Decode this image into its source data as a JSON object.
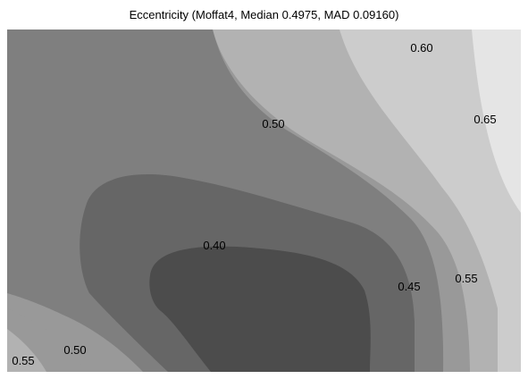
{
  "chart_data": {
    "type": "contour",
    "title": "Eccentricity (Moffat4, Median 0.4975, MAD 0.09160)",
    "xlabel": "",
    "ylabel": "",
    "grid": false,
    "colorbar": false,
    "levels": [
      0.4,
      0.45,
      0.5,
      0.55,
      0.6,
      0.65
    ],
    "bands": [
      {
        "range": [
          0.35,
          0.4
        ],
        "color": "#4c4c4c"
      },
      {
        "range": [
          0.4,
          0.45
        ],
        "color": "#666666"
      },
      {
        "range": [
          0.45,
          0.5
        ],
        "color": "#7f7f7f"
      },
      {
        "range": [
          0.5,
          0.55
        ],
        "color": "#999999"
      },
      {
        "range": [
          0.55,
          0.6
        ],
        "color": "#b2b2b2"
      },
      {
        "range": [
          0.6,
          0.65
        ],
        "color": "#cccccc"
      },
      {
        "range": [
          0.65,
          0.7
        ],
        "color": "#e5e5e5"
      }
    ],
    "contour_labels": [
      {
        "text": "0.60",
        "level": 0.6
      },
      {
        "text": "0.65",
        "level": 0.65
      },
      {
        "text": "0.50",
        "level": 0.5
      },
      {
        "text": "0.40",
        "level": 0.4
      },
      {
        "text": "0.45",
        "level": 0.45
      },
      {
        "text": "0.55",
        "level": 0.55
      },
      {
        "text": "0.50",
        "level": 0.5
      },
      {
        "text": "0.55",
        "level": 0.55
      }
    ]
  }
}
